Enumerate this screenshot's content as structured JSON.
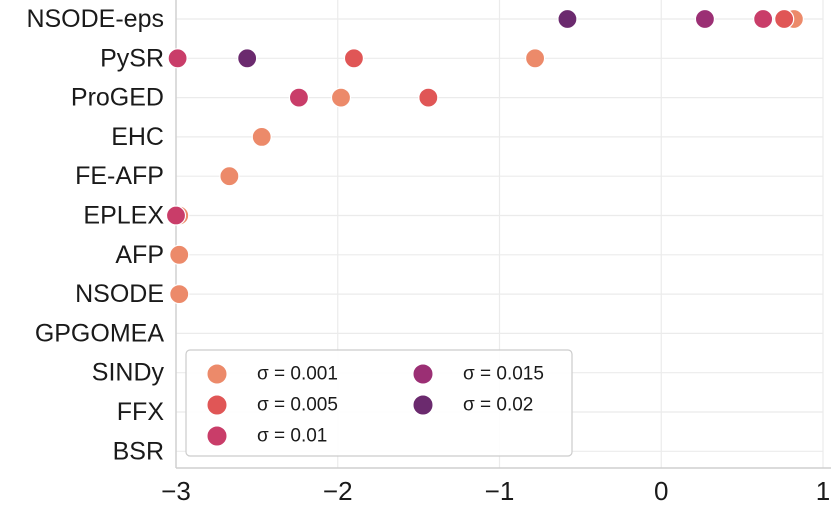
{
  "chart_data": {
    "type": "scatter",
    "title": "",
    "xlabel": "",
    "ylabel": "",
    "xlim": [
      -3,
      1
    ],
    "grid": true,
    "x_ticks": [
      -3,
      -2,
      -1,
      0,
      1
    ],
    "x_tick_labels": [
      "−3",
      "−2",
      "−1",
      "0",
      "1"
    ],
    "categories": [
      "NSODE-eps",
      "PySR",
      "ProGED",
      "EHC",
      "FE-AFP",
      "EPLEX",
      "AFP",
      "NSODE",
      "GPGOMEA",
      "SINDy",
      "FFX",
      "BSR"
    ],
    "legend_position": "lower-left",
    "series": [
      {
        "name": "σ = 0.001",
        "color": "#ec8a6a",
        "points": [
          {
            "category": "NSODE-eps",
            "x": 0.82
          },
          {
            "category": "PySR",
            "x": -0.78
          },
          {
            "category": "ProGED",
            "x": -1.98
          },
          {
            "category": "EHC",
            "x": -2.47
          },
          {
            "category": "FE-AFP",
            "x": -2.67
          },
          {
            "category": "EPLEX",
            "x": -2.98
          },
          {
            "category": "AFP",
            "x": -2.98
          },
          {
            "category": "NSODE",
            "x": -2.98
          }
        ]
      },
      {
        "name": "σ = 0.005",
        "color": "#e05656",
        "points": [
          {
            "category": "NSODE-eps",
            "x": 0.76
          },
          {
            "category": "PySR",
            "x": -1.9
          },
          {
            "category": "ProGED",
            "x": -1.44
          }
        ]
      },
      {
        "name": "σ = 0.01",
        "color": "#c93d69",
        "points": [
          {
            "category": "NSODE-eps",
            "x": 0.63
          },
          {
            "category": "PySR",
            "x": -2.99
          },
          {
            "category": "ProGED",
            "x": -2.24
          },
          {
            "category": "EPLEX",
            "x": -3.0
          }
        ]
      },
      {
        "name": "σ = 0.015",
        "color": "#9b2f74",
        "points": [
          {
            "category": "NSODE-eps",
            "x": 0.27
          }
        ]
      },
      {
        "name": "σ = 0.02",
        "color": "#6b2a6e",
        "points": [
          {
            "category": "NSODE-eps",
            "x": -0.58
          },
          {
            "category": "PySR",
            "x": -2.56
          }
        ]
      }
    ]
  }
}
